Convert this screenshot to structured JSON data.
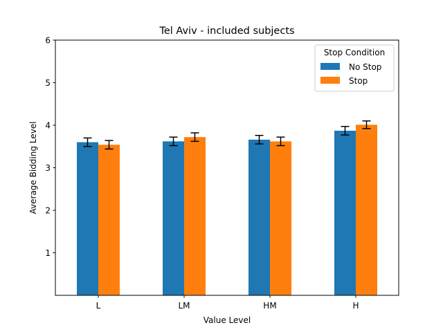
{
  "chart_data": {
    "type": "bar",
    "title": "Tel Aviv - included subjects",
    "xlabel": "Value Level",
    "ylabel": "Average Bidding Level",
    "categories": [
      "L",
      "LM",
      "HM",
      "H"
    ],
    "ylim": [
      0,
      6
    ],
    "yticks": [
      1,
      2,
      3,
      4,
      5,
      6
    ],
    "grid": false,
    "legend": {
      "title": "Stop Condition",
      "placement": "top-right"
    },
    "series": [
      {
        "name": "No Stop",
        "color": "#1f77b4",
        "values": [
          3.6,
          3.62,
          3.66,
          3.87
        ],
        "errors": [
          0.1,
          0.1,
          0.1,
          0.1
        ]
      },
      {
        "name": "Stop",
        "color": "#ff7f0e",
        "values": [
          3.54,
          3.72,
          3.62,
          4.01
        ],
        "errors": [
          0.1,
          0.1,
          0.1,
          0.09
        ]
      }
    ]
  }
}
